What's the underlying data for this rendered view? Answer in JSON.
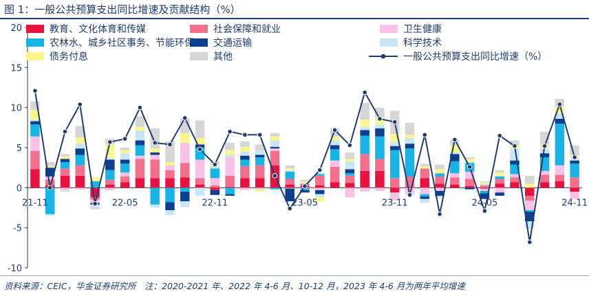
{
  "figure_title": "图 1：一般公共预算支出同比增速及贡献结构（%）",
  "note": "资料来源：CEIC，华金证券研究所　注：2020-2021 年、2022 年 4-6 月、10-12 月，2023 年 4-6 月为两年平均增速",
  "chart_data": {
    "type": "bar",
    "stacked": true,
    "title": "图 1：一般公共预算支出同比增速及贡献结构（%）",
    "xlabel": "",
    "ylabel": "",
    "ylim": [
      -10,
      20
    ],
    "yticks": [
      "-10",
      "-5",
      "0",
      "5",
      "10",
      "15",
      "20"
    ],
    "grid": false,
    "legend_position": "top",
    "categories": [
      "21-11",
      "21-12",
      "22-01",
      "22-02",
      "22-03",
      "22-04",
      "22-05",
      "22-06",
      "22-07",
      "22-08",
      "22-09",
      "22-10",
      "22-11",
      "22-12",
      "23-01",
      "23-02",
      "23-03",
      "23-04",
      "23-05",
      "23-06",
      "23-07",
      "23-08",
      "23-09",
      "23-10",
      "23-11",
      "23-12",
      "24-01",
      "24-02",
      "24-03",
      "24-04",
      "24-05",
      "24-06",
      "24-07",
      "24-08",
      "24-09",
      "24-10",
      "24-11"
    ],
    "x_tick_labels": [
      {
        "index": 0,
        "label": "21-11"
      },
      {
        "index": 6,
        "label": "22-05"
      },
      {
        "index": 12,
        "label": "22-11"
      },
      {
        "index": 18,
        "label": "23-05"
      },
      {
        "index": 24,
        "label": "23-11"
      },
      {
        "index": 30,
        "label": "24-05"
      },
      {
        "index": 36,
        "label": "24-11"
      }
    ],
    "series": [
      {
        "name": "教育、文化体育和传媒",
        "color": "#e8123f",
        "values": [
          2.3,
          0.3,
          1.5,
          1.5,
          -1.2,
          0.4,
          0.7,
          1.2,
          1.2,
          1.2,
          1.3,
          0.4,
          -0.3,
          0.1,
          1.2,
          1.2,
          2.8,
          0.4,
          0.2,
          0.3,
          0.7,
          0.6,
          2.1,
          2.1,
          -0.6,
          0.1,
          1.2,
          0.5,
          0.4,
          0.2,
          -0.1,
          0.5,
          0.7,
          -1.0,
          0.7,
          0.8,
          -0.5
        ]
      },
      {
        "name": "社会保障和就业",
        "color": "#f2708c",
        "values": [
          2.3,
          0.7,
          0.9,
          1.3,
          -0.3,
          0.6,
          0.7,
          2.4,
          2.3,
          1.0,
          1.8,
          0.8,
          0.3,
          1.4,
          1.5,
          1.6,
          1.8,
          0.7,
          0.3,
          1.2,
          1.9,
          0.9,
          2.1,
          1.5,
          1.2,
          1.3,
          1.2,
          0.9,
          0.9,
          0.9,
          0.3,
          0.6,
          0.6,
          -0.6,
          0.9,
          0.8,
          1.3
        ]
      },
      {
        "name": "卫生健康",
        "color": "#f8c2e6",
        "values": [
          1.8,
          0.4,
          -0.3,
          -0.2,
          -0.4,
          -0.3,
          0.5,
          0.4,
          0.6,
          0.6,
          2.5,
          2.3,
          0.9,
          2.3,
          -0.3,
          -0.2,
          0.3,
          -0.1,
          -0.1,
          -0.3,
          0.8,
          -1.2,
          -0.5,
          -0.4,
          -1.0,
          -0.9,
          -0.8,
          -0.4,
          0.5,
          0.9,
          -0.3,
          -0.6,
          0.4,
          -1.2,
          0.5,
          1.2,
          -0.9
        ]
      },
      {
        "name": "农林水、城乡社区事务、节能环保",
        "color": "#19b4e6",
        "values": [
          1.5,
          -3.3,
          0.8,
          1.3,
          0.8,
          1.2,
          1.1,
          1.3,
          -2.1,
          -1.8,
          -0.5,
          1.5,
          1.2,
          -0.8,
          0.8,
          1.0,
          -0.2,
          0.9,
          -0.2,
          0.2,
          1.4,
          0.3,
          2.3,
          2.8,
          3.5,
          3.5,
          -0.3,
          0.4,
          1.5,
          1.1,
          -0.3,
          0.3,
          1.2,
          -0.2,
          1.7,
          5.2,
          1.7
        ]
      },
      {
        "name": "交通运输",
        "color": "#0d3f8f",
        "values": [
          0.4,
          1.1,
          0.4,
          0.8,
          -0.2,
          1.3,
          0.5,
          0.6,
          0.3,
          -1.0,
          -1.2,
          0.4,
          -0.6,
          -0.2,
          0.5,
          0.3,
          0.2,
          -1.6,
          -0.3,
          -0.5,
          0.5,
          0.5,
          0.7,
          1.0,
          0.5,
          0.6,
          -0.3,
          -0.6,
          0.9,
          -0.2,
          -0.7,
          -0.4,
          0.5,
          -1.2,
          0.5,
          0.6,
          0.4
        ]
      },
      {
        "name": "科学技术",
        "color": "#c9e6f7",
        "values": [
          0.2,
          -0.2,
          -0.2,
          0.6,
          -0.3,
          0.2,
          0.8,
          1.2,
          -0.4,
          -0.6,
          -0.7,
          -1.0,
          0.3,
          0.3,
          0.5,
          0.6,
          0.8,
          0.2,
          0.1,
          -0.4,
          0.6,
          1.0,
          0.4,
          0.5,
          0.5,
          0.7,
          -0.5,
          -0.3,
          0.2,
          0.1,
          0.2,
          0.1,
          1.5,
          -0.9,
          0.6,
          0.7,
          0.3
        ]
      },
      {
        "name": "债务付息",
        "color": "#fbf58e",
        "values": [
          1.2,
          0.2,
          0.3,
          0.8,
          0.5,
          1.7,
          0.4,
          0.5,
          0.5,
          0.4,
          1.2,
          0.8,
          0.2,
          0.6,
          0.6,
          -0.3,
          0.5,
          0.2,
          0.2,
          -0.5,
          0.5,
          0.3,
          0.9,
          0.9,
          1.0,
          0.4,
          0.3,
          0.5,
          0.9,
          0.4,
          0.2,
          0.4,
          0.4,
          0.5,
          0.5,
          0.8,
          0.3
        ]
      },
      {
        "name": "其他",
        "color": "#d6d6d6",
        "values": [
          1.1,
          0.5,
          0.3,
          1.4,
          -0.3,
          0.7,
          0.3,
          1.3,
          2.5,
          2.6,
          1.9,
          2.2,
          0.3,
          0.9,
          0.7,
          0.7,
          0.4,
          0.4,
          0.2,
          0.1,
          1.0,
          0.8,
          2.1,
          1.2,
          2.9,
          1.5,
          0.3,
          0.6,
          0.7,
          0.2,
          0.1,
          0.3,
          0.6,
          1.0,
          1.6,
          1.0,
          1.3
        ]
      },
      {
        "name": "一般公共预算支出同比增速（%）",
        "color": "#1f3b73",
        "type": "line",
        "values": [
          12.1,
          0.0,
          7.0,
          10.4,
          -2.0,
          5.7,
          6.1,
          10.0,
          5.6,
          5.4,
          8.7,
          4.8,
          2.9,
          7.0,
          6.6,
          6.6,
          1.5,
          -2.6,
          0.2,
          2.2,
          7.2,
          5.3,
          11.9,
          8.6,
          8.2,
          -0.9,
          6.6,
          -3.3,
          6.0,
          2.6,
          -2.9,
          6.5,
          5.2,
          -6.8,
          5.2,
          10.4,
          3.8
        ]
      }
    ]
  }
}
